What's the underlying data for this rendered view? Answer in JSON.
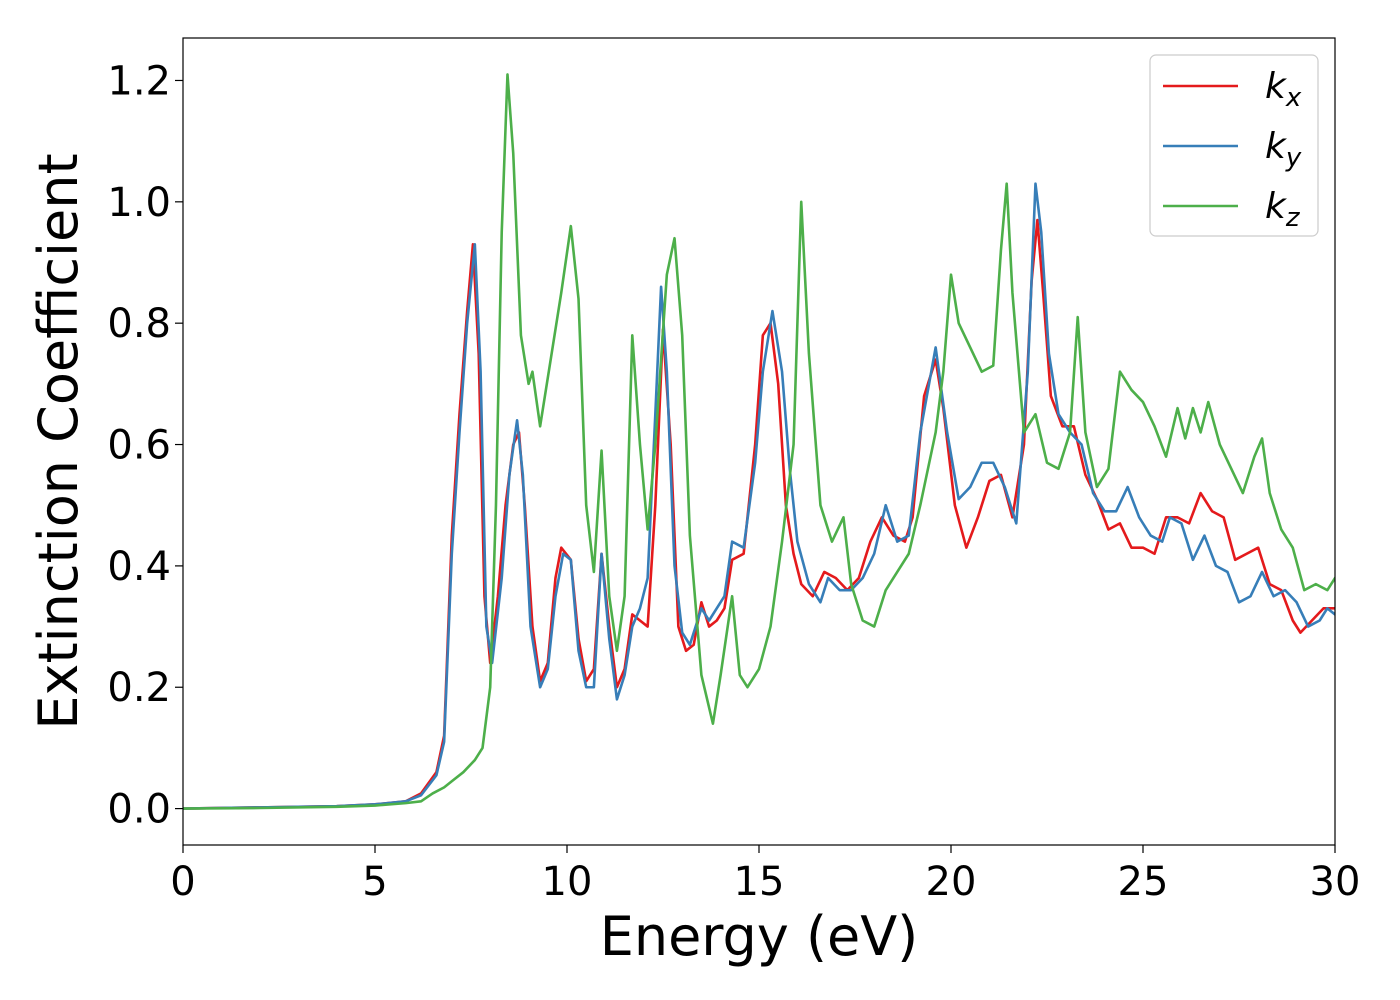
{
  "chart_data": {
    "type": "line",
    "title": "",
    "xlabel": "Energy (eV)",
    "ylabel": "Extinction Coefficient",
    "xlim": [
      0,
      30
    ],
    "ylim": [
      -0.06,
      1.27
    ],
    "xticks": [
      0,
      5,
      10,
      15,
      20,
      25,
      30
    ],
    "xtick_labels": [
      "0",
      "5",
      "10",
      "15",
      "20",
      "25",
      "30"
    ],
    "yticks": [
      0.0,
      0.2,
      0.4,
      0.6,
      0.8,
      1.0,
      1.2
    ],
    "ytick_labels": [
      "0.0",
      "0.2",
      "0.4",
      "0.6",
      "0.8",
      "1.0",
      "1.2"
    ],
    "grid": false,
    "legend_position": "top-right",
    "series": [
      {
        "name": "k",
        "subscript": "x",
        "color": "#e41a1c",
        "points": [
          [
            0,
            0.0
          ],
          [
            2,
            0.002
          ],
          [
            4,
            0.004
          ],
          [
            5,
            0.007
          ],
          [
            5.8,
            0.012
          ],
          [
            6.2,
            0.025
          ],
          [
            6.6,
            0.06
          ],
          [
            6.8,
            0.12
          ],
          [
            7.0,
            0.45
          ],
          [
            7.2,
            0.65
          ],
          [
            7.4,
            0.82
          ],
          [
            7.55,
            0.93
          ],
          [
            7.7,
            0.75
          ],
          [
            7.85,
            0.35
          ],
          [
            8.0,
            0.24
          ],
          [
            8.2,
            0.35
          ],
          [
            8.4,
            0.5
          ],
          [
            8.6,
            0.6
          ],
          [
            8.75,
            0.62
          ],
          [
            8.9,
            0.5
          ],
          [
            9.1,
            0.3
          ],
          [
            9.3,
            0.21
          ],
          [
            9.5,
            0.24
          ],
          [
            9.7,
            0.38
          ],
          [
            9.85,
            0.43
          ],
          [
            10.1,
            0.41
          ],
          [
            10.3,
            0.28
          ],
          [
            10.5,
            0.21
          ],
          [
            10.7,
            0.23
          ],
          [
            10.9,
            0.42
          ],
          [
            11.1,
            0.3
          ],
          [
            11.3,
            0.2
          ],
          [
            11.5,
            0.23
          ],
          [
            11.7,
            0.32
          ],
          [
            11.9,
            0.31
          ],
          [
            12.1,
            0.3
          ],
          [
            12.3,
            0.5
          ],
          [
            12.5,
            0.79
          ],
          [
            12.7,
            0.6
          ],
          [
            12.9,
            0.3
          ],
          [
            13.1,
            0.26
          ],
          [
            13.3,
            0.27
          ],
          [
            13.5,
            0.34
          ],
          [
            13.7,
            0.3
          ],
          [
            13.9,
            0.31
          ],
          [
            14.1,
            0.33
          ],
          [
            14.3,
            0.41
          ],
          [
            14.6,
            0.42
          ],
          [
            14.9,
            0.6
          ],
          [
            15.1,
            0.78
          ],
          [
            15.3,
            0.8
          ],
          [
            15.5,
            0.7
          ],
          [
            15.7,
            0.5
          ],
          [
            15.9,
            0.42
          ],
          [
            16.1,
            0.37
          ],
          [
            16.4,
            0.35
          ],
          [
            16.7,
            0.39
          ],
          [
            17.0,
            0.38
          ],
          [
            17.3,
            0.36
          ],
          [
            17.6,
            0.38
          ],
          [
            17.9,
            0.44
          ],
          [
            18.2,
            0.48
          ],
          [
            18.5,
            0.45
          ],
          [
            18.8,
            0.44
          ],
          [
            19.0,
            0.48
          ],
          [
            19.3,
            0.68
          ],
          [
            19.6,
            0.74
          ],
          [
            19.8,
            0.66
          ],
          [
            20.1,
            0.5
          ],
          [
            20.4,
            0.43
          ],
          [
            20.7,
            0.48
          ],
          [
            21.0,
            0.54
          ],
          [
            21.3,
            0.55
          ],
          [
            21.6,
            0.48
          ],
          [
            21.9,
            0.6
          ],
          [
            22.1,
            0.87
          ],
          [
            22.25,
            0.97
          ],
          [
            22.4,
            0.85
          ],
          [
            22.6,
            0.68
          ],
          [
            22.9,
            0.63
          ],
          [
            23.2,
            0.63
          ],
          [
            23.5,
            0.55
          ],
          [
            23.8,
            0.51
          ],
          [
            24.1,
            0.46
          ],
          [
            24.4,
            0.47
          ],
          [
            24.7,
            0.43
          ],
          [
            25.0,
            0.43
          ],
          [
            25.3,
            0.42
          ],
          [
            25.6,
            0.48
          ],
          [
            25.9,
            0.48
          ],
          [
            26.2,
            0.47
          ],
          [
            26.5,
            0.52
          ],
          [
            26.8,
            0.49
          ],
          [
            27.1,
            0.48
          ],
          [
            27.4,
            0.41
          ],
          [
            27.7,
            0.42
          ],
          [
            28.0,
            0.43
          ],
          [
            28.3,
            0.37
          ],
          [
            28.6,
            0.36
          ],
          [
            28.9,
            0.31
          ],
          [
            29.1,
            0.29
          ],
          [
            29.4,
            0.31
          ],
          [
            29.7,
            0.33
          ],
          [
            30.0,
            0.33
          ]
        ]
      },
      {
        "name": "k",
        "subscript": "y",
        "color": "#377eb8",
        "points": [
          [
            0,
            0.0
          ],
          [
            2,
            0.002
          ],
          [
            4,
            0.004
          ],
          [
            5,
            0.007
          ],
          [
            5.8,
            0.012
          ],
          [
            6.2,
            0.022
          ],
          [
            6.6,
            0.055
          ],
          [
            6.8,
            0.11
          ],
          [
            7.0,
            0.42
          ],
          [
            7.2,
            0.62
          ],
          [
            7.4,
            0.8
          ],
          [
            7.6,
            0.93
          ],
          [
            7.75,
            0.72
          ],
          [
            7.9,
            0.3
          ],
          [
            8.05,
            0.24
          ],
          [
            8.3,
            0.38
          ],
          [
            8.5,
            0.55
          ],
          [
            8.7,
            0.64
          ],
          [
            8.85,
            0.55
          ],
          [
            9.05,
            0.3
          ],
          [
            9.3,
            0.2
          ],
          [
            9.5,
            0.23
          ],
          [
            9.7,
            0.35
          ],
          [
            9.9,
            0.42
          ],
          [
            10.1,
            0.41
          ],
          [
            10.3,
            0.26
          ],
          [
            10.5,
            0.2
          ],
          [
            10.7,
            0.2
          ],
          [
            10.9,
            0.42
          ],
          [
            11.1,
            0.28
          ],
          [
            11.3,
            0.18
          ],
          [
            11.5,
            0.22
          ],
          [
            11.7,
            0.3
          ],
          [
            11.9,
            0.33
          ],
          [
            12.1,
            0.38
          ],
          [
            12.3,
            0.65
          ],
          [
            12.45,
            0.86
          ],
          [
            12.6,
            0.72
          ],
          [
            12.8,
            0.4
          ],
          [
            13.0,
            0.29
          ],
          [
            13.2,
            0.27
          ],
          [
            13.5,
            0.33
          ],
          [
            13.7,
            0.31
          ],
          [
            13.9,
            0.33
          ],
          [
            14.1,
            0.35
          ],
          [
            14.3,
            0.44
          ],
          [
            14.6,
            0.43
          ],
          [
            14.9,
            0.57
          ],
          [
            15.1,
            0.72
          ],
          [
            15.35,
            0.82
          ],
          [
            15.6,
            0.72
          ],
          [
            15.8,
            0.56
          ],
          [
            16.0,
            0.44
          ],
          [
            16.3,
            0.37
          ],
          [
            16.6,
            0.34
          ],
          [
            16.8,
            0.38
          ],
          [
            17.1,
            0.36
          ],
          [
            17.4,
            0.36
          ],
          [
            17.7,
            0.38
          ],
          [
            18.0,
            0.42
          ],
          [
            18.3,
            0.5
          ],
          [
            18.6,
            0.44
          ],
          [
            18.9,
            0.45
          ],
          [
            19.2,
            0.62
          ],
          [
            19.6,
            0.76
          ],
          [
            19.9,
            0.62
          ],
          [
            20.2,
            0.51
          ],
          [
            20.5,
            0.53
          ],
          [
            20.8,
            0.57
          ],
          [
            21.1,
            0.57
          ],
          [
            21.4,
            0.53
          ],
          [
            21.7,
            0.47
          ],
          [
            22.0,
            0.72
          ],
          [
            22.2,
            1.03
          ],
          [
            22.35,
            0.95
          ],
          [
            22.55,
            0.75
          ],
          [
            22.8,
            0.65
          ],
          [
            23.1,
            0.62
          ],
          [
            23.4,
            0.6
          ],
          [
            23.7,
            0.52
          ],
          [
            24.0,
            0.49
          ],
          [
            24.3,
            0.49
          ],
          [
            24.6,
            0.53
          ],
          [
            24.9,
            0.48
          ],
          [
            25.2,
            0.45
          ],
          [
            25.5,
            0.44
          ],
          [
            25.7,
            0.48
          ],
          [
            26.0,
            0.47
          ],
          [
            26.3,
            0.41
          ],
          [
            26.6,
            0.45
          ],
          [
            26.9,
            0.4
          ],
          [
            27.2,
            0.39
          ],
          [
            27.5,
            0.34
          ],
          [
            27.8,
            0.35
          ],
          [
            28.1,
            0.39
          ],
          [
            28.4,
            0.35
          ],
          [
            28.7,
            0.36
          ],
          [
            29.0,
            0.34
          ],
          [
            29.3,
            0.3
          ],
          [
            29.6,
            0.31
          ],
          [
            29.8,
            0.33
          ],
          [
            30.0,
            0.32
          ]
        ]
      },
      {
        "name": "k",
        "subscript": "z",
        "color": "#4daf4a",
        "points": [
          [
            0,
            0.0
          ],
          [
            2,
            0.001
          ],
          [
            4,
            0.003
          ],
          [
            5,
            0.005
          ],
          [
            5.8,
            0.009
          ],
          [
            6.2,
            0.012
          ],
          [
            6.5,
            0.025
          ],
          [
            6.8,
            0.035
          ],
          [
            7.0,
            0.045
          ],
          [
            7.3,
            0.06
          ],
          [
            7.6,
            0.08
          ],
          [
            7.8,
            0.1
          ],
          [
            8.0,
            0.2
          ],
          [
            8.15,
            0.5
          ],
          [
            8.3,
            0.95
          ],
          [
            8.45,
            1.21
          ],
          [
            8.6,
            1.08
          ],
          [
            8.8,
            0.78
          ],
          [
            9.0,
            0.7
          ],
          [
            9.1,
            0.72
          ],
          [
            9.3,
            0.63
          ],
          [
            9.6,
            0.75
          ],
          [
            9.85,
            0.85
          ],
          [
            10.1,
            0.96
          ],
          [
            10.3,
            0.84
          ],
          [
            10.5,
            0.5
          ],
          [
            10.7,
            0.39
          ],
          [
            10.9,
            0.59
          ],
          [
            11.1,
            0.35
          ],
          [
            11.3,
            0.26
          ],
          [
            11.5,
            0.35
          ],
          [
            11.7,
            0.78
          ],
          [
            11.9,
            0.6
          ],
          [
            12.1,
            0.46
          ],
          [
            12.3,
            0.6
          ],
          [
            12.6,
            0.88
          ],
          [
            12.8,
            0.94
          ],
          [
            13.0,
            0.78
          ],
          [
            13.2,
            0.45
          ],
          [
            13.5,
            0.22
          ],
          [
            13.8,
            0.14
          ],
          [
            14.0,
            0.22
          ],
          [
            14.3,
            0.35
          ],
          [
            14.5,
            0.22
          ],
          [
            14.7,
            0.2
          ],
          [
            15.0,
            0.23
          ],
          [
            15.3,
            0.3
          ],
          [
            15.6,
            0.44
          ],
          [
            15.9,
            0.6
          ],
          [
            16.1,
            1.0
          ],
          [
            16.3,
            0.75
          ],
          [
            16.6,
            0.5
          ],
          [
            16.9,
            0.44
          ],
          [
            17.2,
            0.48
          ],
          [
            17.4,
            0.37
          ],
          [
            17.7,
            0.31
          ],
          [
            18.0,
            0.3
          ],
          [
            18.3,
            0.36
          ],
          [
            18.6,
            0.39
          ],
          [
            18.9,
            0.42
          ],
          [
            19.2,
            0.5
          ],
          [
            19.6,
            0.62
          ],
          [
            19.8,
            0.72
          ],
          [
            20.0,
            0.88
          ],
          [
            20.2,
            0.8
          ],
          [
            20.5,
            0.76
          ],
          [
            20.8,
            0.72
          ],
          [
            21.1,
            0.73
          ],
          [
            21.3,
            0.92
          ],
          [
            21.45,
            1.03
          ],
          [
            21.6,
            0.85
          ],
          [
            21.9,
            0.62
          ],
          [
            22.2,
            0.65
          ],
          [
            22.5,
            0.57
          ],
          [
            22.8,
            0.56
          ],
          [
            23.1,
            0.62
          ],
          [
            23.3,
            0.81
          ],
          [
            23.5,
            0.62
          ],
          [
            23.8,
            0.53
          ],
          [
            24.1,
            0.56
          ],
          [
            24.4,
            0.72
          ],
          [
            24.7,
            0.69
          ],
          [
            25.0,
            0.67
          ],
          [
            25.3,
            0.63
          ],
          [
            25.6,
            0.58
          ],
          [
            25.9,
            0.66
          ],
          [
            26.1,
            0.61
          ],
          [
            26.3,
            0.66
          ],
          [
            26.5,
            0.62
          ],
          [
            26.7,
            0.67
          ],
          [
            27.0,
            0.6
          ],
          [
            27.3,
            0.56
          ],
          [
            27.6,
            0.52
          ],
          [
            27.9,
            0.58
          ],
          [
            28.1,
            0.61
          ],
          [
            28.3,
            0.52
          ],
          [
            28.6,
            0.46
          ],
          [
            28.9,
            0.43
          ],
          [
            29.2,
            0.36
          ],
          [
            29.5,
            0.37
          ],
          [
            29.8,
            0.36
          ],
          [
            30.0,
            0.38
          ]
        ]
      }
    ]
  }
}
